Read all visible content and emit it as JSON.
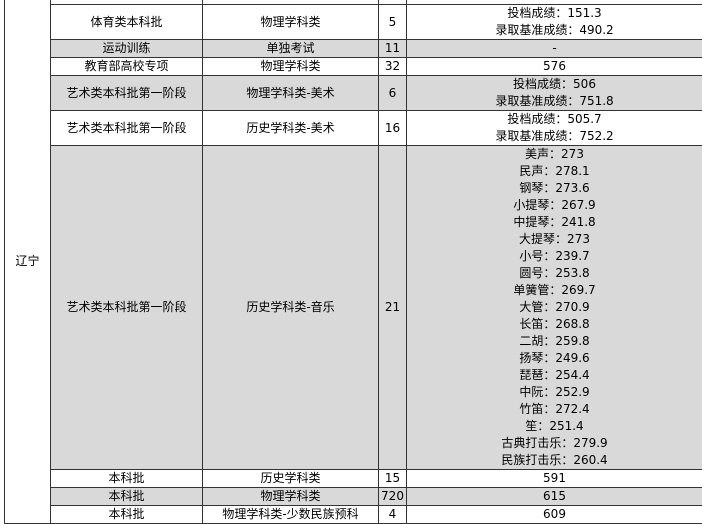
{
  "table": {
    "province": "辽宁",
    "rows": [
      {
        "batch": "体育类本科批",
        "subject": "物理学科类",
        "count": "5",
        "score": [
          "投档成绩：151.3",
          "录取基准成绩：490.2"
        ],
        "shaded": false
      },
      {
        "batch": "运动训练",
        "subject": "单独考试",
        "count": "11",
        "score": [
          "-"
        ],
        "shaded": true
      },
      {
        "batch": "教育部高校专项",
        "subject": "物理学科类",
        "count": "32",
        "score": [
          "576"
        ],
        "shaded": false
      },
      {
        "batch": "艺术类本科批第一阶段",
        "subject": "物理学科类-美术",
        "count": "6",
        "score": [
          "投档成绩：506",
          "录取基准成绩：751.8"
        ],
        "shaded": true
      },
      {
        "batch": "艺术类本科批第一阶段",
        "subject": "历史学科类-美术",
        "count": "16",
        "score": [
          "投档成绩：505.7",
          "录取基准成绩：752.2"
        ],
        "shaded": false
      },
      {
        "batch": "艺术类本科批第一阶段",
        "subject": "历史学科类-音乐",
        "count": "21",
        "score": [
          "美声：273",
          "民声：278.1",
          "钢琴：273.6",
          "小提琴：267.9",
          "中提琴：241.8",
          "大提琴：273",
          "小号：239.7",
          "圆号：253.8",
          "单簧管：269.7",
          "大管：270.9",
          "长笛：268.8",
          "二胡：259.8",
          "扬琴：249.6",
          "琵琶：254.4",
          "中阮：252.9",
          "竹笛：272.4",
          "笙：251.4",
          "古典打击乐：279.9",
          "民族打击乐：260.4"
        ],
        "shaded": true
      },
      {
        "batch": "本科批",
        "subject": "历史学科类",
        "count": "15",
        "score": [
          "591"
        ],
        "shaded": false
      },
      {
        "batch": "本科批",
        "subject": "物理学科类",
        "count": "720",
        "score": [
          "615"
        ],
        "shaded": true
      },
      {
        "batch": "本科批",
        "subject": "物理学科类-少数民族预科",
        "count": "4",
        "score": [
          "609"
        ],
        "shaded": false
      }
    ]
  }
}
